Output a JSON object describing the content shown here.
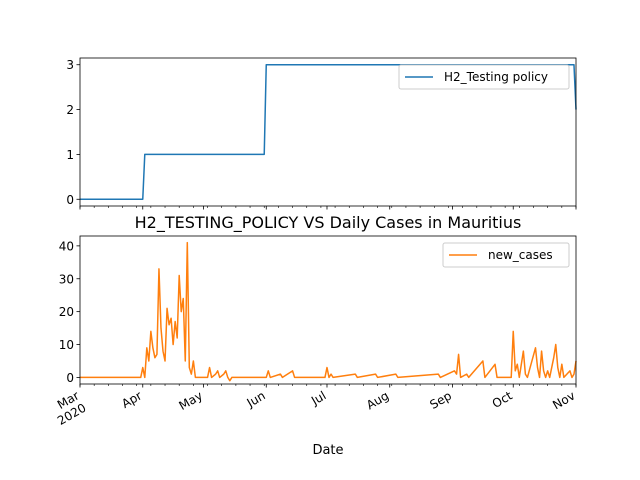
{
  "figure": {
    "title": "H2_TESTING_POLICY VS Daily Cases in Mauritius",
    "xlabel": "Date"
  },
  "x_ticks": {
    "labels": [
      "Mar\n2020",
      "Apr",
      "May",
      "Jun",
      "Jul",
      "Aug",
      "Sep",
      "Oct",
      "Nov"
    ],
    "dates": [
      "2020-03-01",
      "2020-04-01",
      "2020-05-01",
      "2020-06-01",
      "2020-07-01",
      "2020-08-01",
      "2020-09-01",
      "2020-10-01",
      "2020-11-01"
    ]
  },
  "chart_data": [
    {
      "type": "line",
      "title": "",
      "xlabel": "",
      "ylabel": "",
      "xlim": [
        "2020-03-01",
        "2020-11-01"
      ],
      "ylim": [
        -0.15,
        3.15
      ],
      "yticks": [
        0,
        1,
        2,
        3
      ],
      "legend_position": "top-right",
      "grid": false,
      "series": [
        {
          "name": "H2_Testing policy",
          "color": "#1f77b4",
          "step": true,
          "points": [
            [
              "2020-03-01",
              0
            ],
            [
              "2020-04-01",
              0
            ],
            [
              "2020-04-02",
              1
            ],
            [
              "2020-05-31",
              1
            ],
            [
              "2020-06-01",
              3
            ],
            [
              "2020-10-31",
              3
            ],
            [
              "2020-11-01",
              2
            ]
          ]
        }
      ]
    },
    {
      "type": "line",
      "title": "H2_TESTING_POLICY VS Daily Cases in Mauritius",
      "xlabel": "Date",
      "ylabel": "",
      "xlim": [
        "2020-03-01",
        "2020-11-01"
      ],
      "ylim": [
        -2,
        43
      ],
      "yticks": [
        0,
        10,
        20,
        30,
        40
      ],
      "legend_position": "top-right",
      "grid": false,
      "series": [
        {
          "name": "new_cases",
          "color": "#ff7f0e",
          "points": [
            [
              "2020-03-01",
              0
            ],
            [
              "2020-03-31",
              0
            ],
            [
              "2020-04-01",
              3
            ],
            [
              "2020-04-02",
              0
            ],
            [
              "2020-04-03",
              9
            ],
            [
              "2020-04-04",
              5
            ],
            [
              "2020-04-05",
              14
            ],
            [
              "2020-04-06",
              9
            ],
            [
              "2020-04-07",
              6
            ],
            [
              "2020-04-08",
              7
            ],
            [
              "2020-04-09",
              33
            ],
            [
              "2020-04-10",
              15
            ],
            [
              "2020-04-11",
              8
            ],
            [
              "2020-04-12",
              5
            ],
            [
              "2020-04-13",
              21
            ],
            [
              "2020-04-14",
              16
            ],
            [
              "2020-04-15",
              18
            ],
            [
              "2020-04-16",
              10
            ],
            [
              "2020-04-17",
              17
            ],
            [
              "2020-04-18",
              12
            ],
            [
              "2020-04-19",
              31
            ],
            [
              "2020-04-20",
              20
            ],
            [
              "2020-04-21",
              24
            ],
            [
              "2020-04-22",
              5
            ],
            [
              "2020-04-23",
              41
            ],
            [
              "2020-04-24",
              3
            ],
            [
              "2020-04-25",
              1
            ],
            [
              "2020-04-26",
              5
            ],
            [
              "2020-04-27",
              0
            ],
            [
              "2020-05-03",
              0
            ],
            [
              "2020-05-04",
              3
            ],
            [
              "2020-05-05",
              0
            ],
            [
              "2020-05-07",
              1
            ],
            [
              "2020-05-08",
              2
            ],
            [
              "2020-05-09",
              0
            ],
            [
              "2020-05-11",
              1
            ],
            [
              "2020-05-12",
              2
            ],
            [
              "2020-05-13",
              0
            ],
            [
              "2020-05-14",
              -1
            ],
            [
              "2020-05-15",
              0
            ],
            [
              "2020-06-01",
              0
            ],
            [
              "2020-06-02",
              2
            ],
            [
              "2020-06-03",
              0
            ],
            [
              "2020-06-08",
              1
            ],
            [
              "2020-06-09",
              0
            ],
            [
              "2020-06-14",
              2
            ],
            [
              "2020-06-15",
              0
            ],
            [
              "2020-06-30",
              0
            ],
            [
              "2020-07-01",
              3
            ],
            [
              "2020-07-02",
              0
            ],
            [
              "2020-07-03",
              1
            ],
            [
              "2020-07-04",
              0
            ],
            [
              "2020-07-15",
              1
            ],
            [
              "2020-07-16",
              0
            ],
            [
              "2020-07-25",
              1
            ],
            [
              "2020-07-26",
              0
            ],
            [
              "2020-08-04",
              1
            ],
            [
              "2020-08-05",
              0
            ],
            [
              "2020-08-25",
              1
            ],
            [
              "2020-08-26",
              0
            ],
            [
              "2020-09-02",
              2
            ],
            [
              "2020-09-03",
              1
            ],
            [
              "2020-09-04",
              7
            ],
            [
              "2020-09-05",
              0
            ],
            [
              "2020-09-08",
              1
            ],
            [
              "2020-09-09",
              0
            ],
            [
              "2020-09-16",
              5
            ],
            [
              "2020-09-17",
              0
            ],
            [
              "2020-09-22",
              4
            ],
            [
              "2020-09-23",
              0
            ],
            [
              "2020-09-30",
              0
            ],
            [
              "2020-10-01",
              14
            ],
            [
              "2020-10-02",
              2
            ],
            [
              "2020-10-03",
              4
            ],
            [
              "2020-10-04",
              0
            ],
            [
              "2020-10-06",
              8
            ],
            [
              "2020-10-07",
              1
            ],
            [
              "2020-10-08",
              0
            ],
            [
              "2020-10-12",
              9
            ],
            [
              "2020-10-13",
              3
            ],
            [
              "2020-10-14",
              0
            ],
            [
              "2020-10-15",
              8
            ],
            [
              "2020-10-16",
              2
            ],
            [
              "2020-10-17",
              0
            ],
            [
              "2020-10-18",
              2
            ],
            [
              "2020-10-19",
              0
            ],
            [
              "2020-10-21",
              6
            ],
            [
              "2020-10-22",
              10
            ],
            [
              "2020-10-23",
              3
            ],
            [
              "2020-10-24",
              0
            ],
            [
              "2020-10-25",
              4
            ],
            [
              "2020-10-26",
              0
            ],
            [
              "2020-10-29",
              2
            ],
            [
              "2020-10-30",
              0
            ],
            [
              "2020-10-31",
              1
            ],
            [
              "2020-11-01",
              5
            ]
          ]
        }
      ]
    }
  ]
}
